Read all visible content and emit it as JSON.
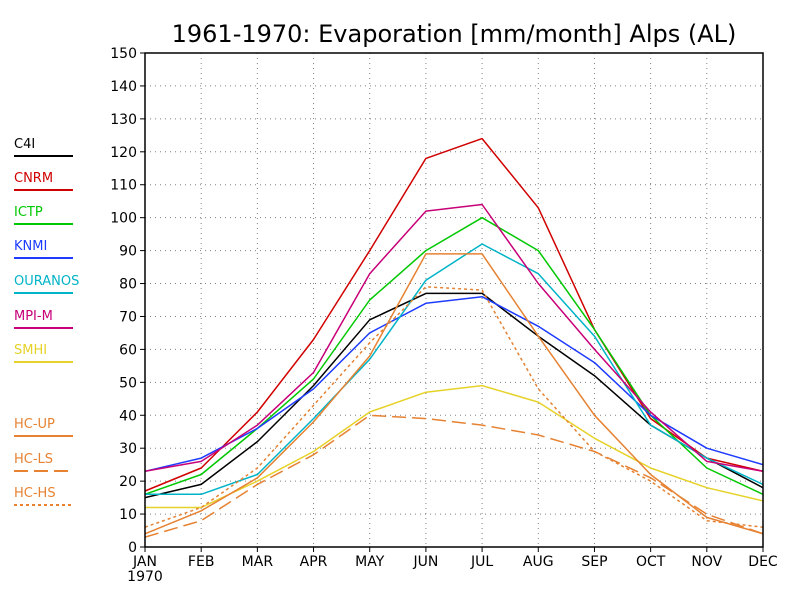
{
  "chart_data": {
    "type": "line",
    "title": "1961-1970: Evaporation [mm/month] Alps (AL)",
    "xlabel": "",
    "ylabel": "",
    "categories": [
      "JAN",
      "FEB",
      "MAR",
      "APR",
      "MAY",
      "JUN",
      "JUL",
      "AUG",
      "SEP",
      "OCT",
      "NOV",
      "DEC"
    ],
    "x_sublabel": "1970",
    "ylim": [
      0,
      150
    ],
    "yticks": [
      0,
      10,
      20,
      30,
      40,
      50,
      60,
      70,
      80,
      90,
      100,
      110,
      120,
      130,
      140,
      150
    ],
    "grid": true,
    "legend_position": "left",
    "series": [
      {
        "name": "C4I",
        "color": "#000000",
        "dash": "solid",
        "values": [
          15,
          19,
          32,
          49,
          69,
          77,
          77,
          64,
          52,
          37,
          27,
          18
        ]
      },
      {
        "name": "CNRM",
        "color": "#d00000",
        "dash": "solid",
        "values": [
          17,
          24,
          41,
          63,
          90,
          118,
          124,
          103,
          66,
          39,
          27,
          23
        ]
      },
      {
        "name": "ICTP",
        "color": "#00c800",
        "dash": "solid",
        "values": [
          16,
          22,
          36,
          51,
          75,
          90,
          100,
          90,
          66,
          40,
          24,
          16
        ]
      },
      {
        "name": "KNMI",
        "color": "#1e3cff",
        "dash": "solid",
        "values": [
          23,
          27,
          36,
          48,
          65,
          74,
          76,
          67,
          56,
          40,
          30,
          25
        ]
      },
      {
        "name": "OURANOS",
        "color": "#00b4c8",
        "dash": "solid",
        "values": [
          16,
          16,
          22,
          39,
          57,
          81,
          92,
          83,
          64,
          37,
          27,
          19
        ]
      },
      {
        "name": "MPI-M",
        "color": "#c80078",
        "dash": "solid",
        "values": [
          23,
          26,
          37,
          53,
          83,
          102,
          104,
          80,
          60,
          41,
          26,
          23
        ]
      },
      {
        "name": "SMHI",
        "color": "#e6d228",
        "dash": "solid",
        "values": [
          12,
          12,
          20,
          29,
          41,
          47,
          49,
          44,
          33,
          24,
          18,
          14
        ]
      },
      {
        "name": "HC-UP",
        "color": "#e68232",
        "dash": "solid",
        "values": [
          4,
          11,
          21,
          38,
          58,
          89,
          89,
          64,
          40,
          22,
          9,
          4
        ]
      },
      {
        "name": "HC-LS",
        "color": "#e68232",
        "dash": "dashed",
        "values": [
          3,
          8,
          19,
          28,
          40,
          39,
          37,
          34,
          29,
          21,
          10,
          4
        ]
      },
      {
        "name": "HC-HS",
        "color": "#e68232",
        "dash": "dotted",
        "values": [
          6,
          12,
          24,
          43,
          62,
          79,
          78,
          48,
          29,
          20,
          8,
          6
        ]
      }
    ]
  }
}
